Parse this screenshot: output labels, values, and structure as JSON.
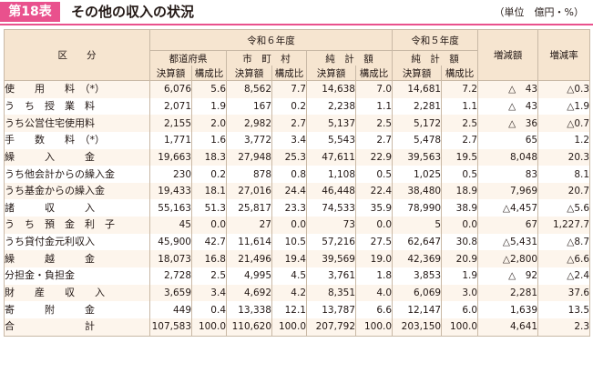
{
  "title": {
    "tag": "第18表",
    "text": "その他の収入の状況",
    "unit": "（単位　億円・%）"
  },
  "header": {
    "category": "区　　分",
    "year_r6": "令和６年度",
    "year_r5": "令和５年度",
    "pref": "都道府県",
    "muni": "市　町　村",
    "total": "純　計　額",
    "total_r5": "純　計　額",
    "settled": "決算額",
    "ratio": "構成比",
    "change": "増減額",
    "change_rate": "増減率"
  },
  "rows": [
    {
      "label": "使　　用　　料　（*）",
      "sub": false,
      "v": [
        "6,076",
        "5.6",
        "8,562",
        "7.7",
        "14,638",
        "7.0",
        "14,681",
        "7.2",
        "△　43",
        "△0.3"
      ]
    },
    {
      "label": "う　ち　授　業　料",
      "sub": true,
      "v": [
        "2,071",
        "1.9",
        "167",
        "0.2",
        "2,238",
        "1.1",
        "2,281",
        "1.1",
        "△　43",
        "△1.9"
      ]
    },
    {
      "label": "うち公営住宅使用料",
      "sub": true,
      "v": [
        "2,155",
        "2.0",
        "2,982",
        "2.7",
        "5,137",
        "2.5",
        "5,172",
        "2.5",
        "△　36",
        "△0.7"
      ]
    },
    {
      "label": "手　　数　　料　（*）",
      "sub": false,
      "v": [
        "1,771",
        "1.6",
        "3,772",
        "3.4",
        "5,543",
        "2.7",
        "5,478",
        "2.7",
        "65",
        "1.2"
      ]
    },
    {
      "label": "繰　　　入　　　金",
      "sub": false,
      "v": [
        "19,663",
        "18.3",
        "27,948",
        "25.3",
        "47,611",
        "22.9",
        "39,563",
        "19.5",
        "8,048",
        "20.3"
      ]
    },
    {
      "label": "うち他会計からの繰入金",
      "sub": true,
      "v": [
        "230",
        "0.2",
        "878",
        "0.8",
        "1,108",
        "0.5",
        "1,025",
        "0.5",
        "83",
        "8.1"
      ]
    },
    {
      "label": "うち基金からの繰入金",
      "sub": true,
      "v": [
        "19,433",
        "18.1",
        "27,016",
        "24.4",
        "46,448",
        "22.4",
        "38,480",
        "18.9",
        "7,969",
        "20.7"
      ]
    },
    {
      "label": "諸　　　収　　　入",
      "sub": false,
      "v": [
        "55,163",
        "51.3",
        "25,817",
        "23.3",
        "74,533",
        "35.9",
        "78,990",
        "38.9",
        "△4,457",
        "△5.6"
      ]
    },
    {
      "label": "う　ち　預　金　利　子",
      "sub": true,
      "v": [
        "45",
        "0.0",
        "27",
        "0.0",
        "73",
        "0.0",
        "5",
        "0.0",
        "67",
        "1,227.7"
      ]
    },
    {
      "label": "うち貸付金元利収入",
      "sub": true,
      "v": [
        "45,900",
        "42.7",
        "11,614",
        "10.5",
        "57,216",
        "27.5",
        "62,647",
        "30.8",
        "△5,431",
        "△8.7"
      ]
    },
    {
      "label": "繰　　　越　　　金",
      "sub": false,
      "v": [
        "18,073",
        "16.8",
        "21,496",
        "19.4",
        "39,569",
        "19.0",
        "42,369",
        "20.9",
        "△2,800",
        "△6.6"
      ]
    },
    {
      "label": "分担金・負担金",
      "sub": false,
      "v": [
        "2,728",
        "2.5",
        "4,995",
        "4.5",
        "3,761",
        "1.8",
        "3,853",
        "1.9",
        "△　92",
        "△2.4"
      ]
    },
    {
      "label": "財　　産　　収　　入",
      "sub": false,
      "v": [
        "3,659",
        "3.4",
        "4,692",
        "4.2",
        "8,351",
        "4.0",
        "6,069",
        "3.0",
        "2,281",
        "37.6"
      ]
    },
    {
      "label": "寄　　　附　　　金",
      "sub": false,
      "v": [
        "449",
        "0.4",
        "13,338",
        "12.1",
        "13,787",
        "6.6",
        "12,147",
        "6.0",
        "1,639",
        "13.5"
      ]
    },
    {
      "label": "合　　　　　　　計",
      "sub": false,
      "v": [
        "107,583",
        "100.0",
        "110,620",
        "100.0",
        "207,792",
        "100.0",
        "203,150",
        "100.0",
        "4,641",
        "2.3"
      ]
    }
  ]
}
